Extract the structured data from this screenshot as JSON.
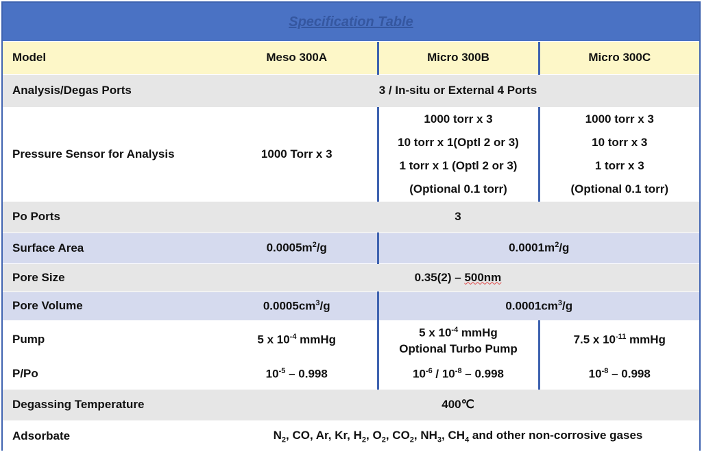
{
  "title": "Specification Table",
  "header": {
    "label": "Model",
    "col1": "Meso 300A",
    "col2": "Micro 300B",
    "col3": "Micro 300C"
  },
  "rows": {
    "analysis_ports": {
      "label": "Analysis/Degas Ports",
      "value": "3 / In-situ or External 4 Ports"
    },
    "pressure_sensor": {
      "label": "Pressure Sensor for Analysis",
      "a": "1000 Torr x 3",
      "b": [
        "1000 torr x 3",
        "10 torr x 1(Optl 2 or 3)",
        "1 torr x 1 (Optl 2 or 3)",
        "(Optional 0.1 torr)"
      ],
      "c": [
        "1000 torr x 3",
        "10 torr x 3",
        "1 torr x 3",
        "(Optional 0.1 torr)"
      ]
    },
    "po_ports": {
      "label": "Po Ports",
      "value": "3"
    },
    "surface_area": {
      "label": "Surface Area",
      "a_num": "0.0005m",
      "a_exp": "2",
      "a_unit": "/g",
      "bc_num": "0.0001m",
      "bc_exp": "2",
      "bc_unit": "/g"
    },
    "pore_size": {
      "label": "Pore Size",
      "value_prefix": "0.35(2) – ",
      "value_underlined": "500nm"
    },
    "pore_volume": {
      "label": "Pore Volume",
      "a_num": "0.0005cm",
      "a_exp": "3",
      "a_unit": "/g",
      "bc_num": "0.0001cm",
      "bc_exp": "3",
      "bc_unit": "/g"
    },
    "pump": {
      "label": "Pump",
      "a_base": "5 x 10",
      "a_exp": "-4",
      "a_unit": " mmHg",
      "b_base": "5 x 10",
      "b_exp": "-4",
      "b_unit": " mmHg",
      "b_line2": "Optional Turbo Pump",
      "c_base": "7.5 x 10",
      "c_exp": "-11",
      "c_unit": " mmHg"
    },
    "p_po": {
      "label": "P/Po",
      "a_base": "10",
      "a_exp": "-5",
      "a_rest": " – 0.998",
      "b_base1": "10",
      "b_exp1": "-6",
      "b_mid": " / 10",
      "b_exp2": "-8",
      "b_rest": " – 0.998",
      "c_base": "10",
      "c_exp": "-8",
      "c_rest": " – 0.998"
    },
    "degassing_temp": {
      "label": "Degassing Temperature",
      "value": "400℃"
    },
    "adsorbate": {
      "label": "Adsorbate",
      "gases": [
        {
          "sym": "N",
          "sub": "2"
        },
        {
          "sym": "CO",
          "sub": ""
        },
        {
          "sym": "Ar",
          "sub": ""
        },
        {
          "sym": "Kr",
          "sub": ""
        },
        {
          "sym": "H",
          "sub": "2"
        },
        {
          "sym": "O",
          "sub": "2"
        },
        {
          "sym": "CO",
          "sub": "2"
        },
        {
          "sym": "NH",
          "sub": "3"
        },
        {
          "sym": "CH",
          "sub": "4"
        }
      ],
      "separator": ", ",
      "suffix": " and other non-corrosive gases"
    }
  }
}
